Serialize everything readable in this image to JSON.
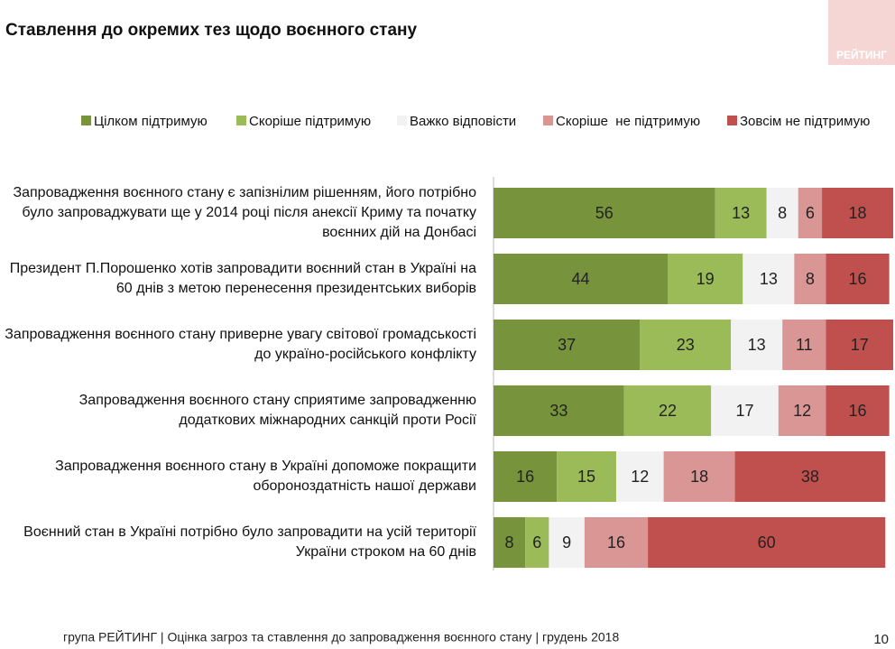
{
  "chart_data": {
    "type": "stacked-bar-horizontal",
    "title": "Ставлення до окремих тез щодо воєнного стану",
    "categories": [
      "Запровадження воєнного стану є запізнілим рішенням, його потрібно було запроваджувати ще у 2014 році після анексії Криму та початку воєнних дій на Донбасі",
      "Президент П.Порошенко хотів запровадити воєнний стан в Україні на 60 днів з метою перенесення президентських виборів",
      "Запровадження воєнного стану приверне увагу світової громадськості до україно-російського конфлікту",
      "Запровадження воєнного стану сприятиме запровадженню додаткових міжнародних санкцій проти Росії",
      "Запровадження воєнного стану в Україні допоможе покращити обороноздатність нашої держави",
      "Воєнний стан в Україні потрібно було запровадити на усій території України строком на 60 днів"
    ],
    "series": [
      {
        "name": "Цілком підтримую",
        "color": "#77933c",
        "values": [
          56,
          44,
          37,
          33,
          16,
          8
        ]
      },
      {
        "name": "Скоріше підтримую",
        "color": "#9bbb59",
        "values": [
          13,
          19,
          23,
          22,
          15,
          6
        ]
      },
      {
        "name": "Важко відповісти",
        "color": "#f2f2f2",
        "values": [
          8,
          13,
          13,
          17,
          12,
          9
        ]
      },
      {
        "name": "Скоріше  не підтримую",
        "color": "#d99694",
        "values": [
          6,
          8,
          11,
          12,
          18,
          16
        ]
      },
      {
        "name": "Зовсім не підтримую",
        "color": "#c0504d",
        "values": [
          18,
          16,
          17,
          16,
          38,
          60
        ]
      }
    ],
    "legend": "top"
  },
  "logo": "РЕЙТИНГ",
  "footer": "група РЕЙТИНГ | Оцінка загроз та ставлення до запровадження воєнного стану | грудень 2018",
  "page_number": "10"
}
